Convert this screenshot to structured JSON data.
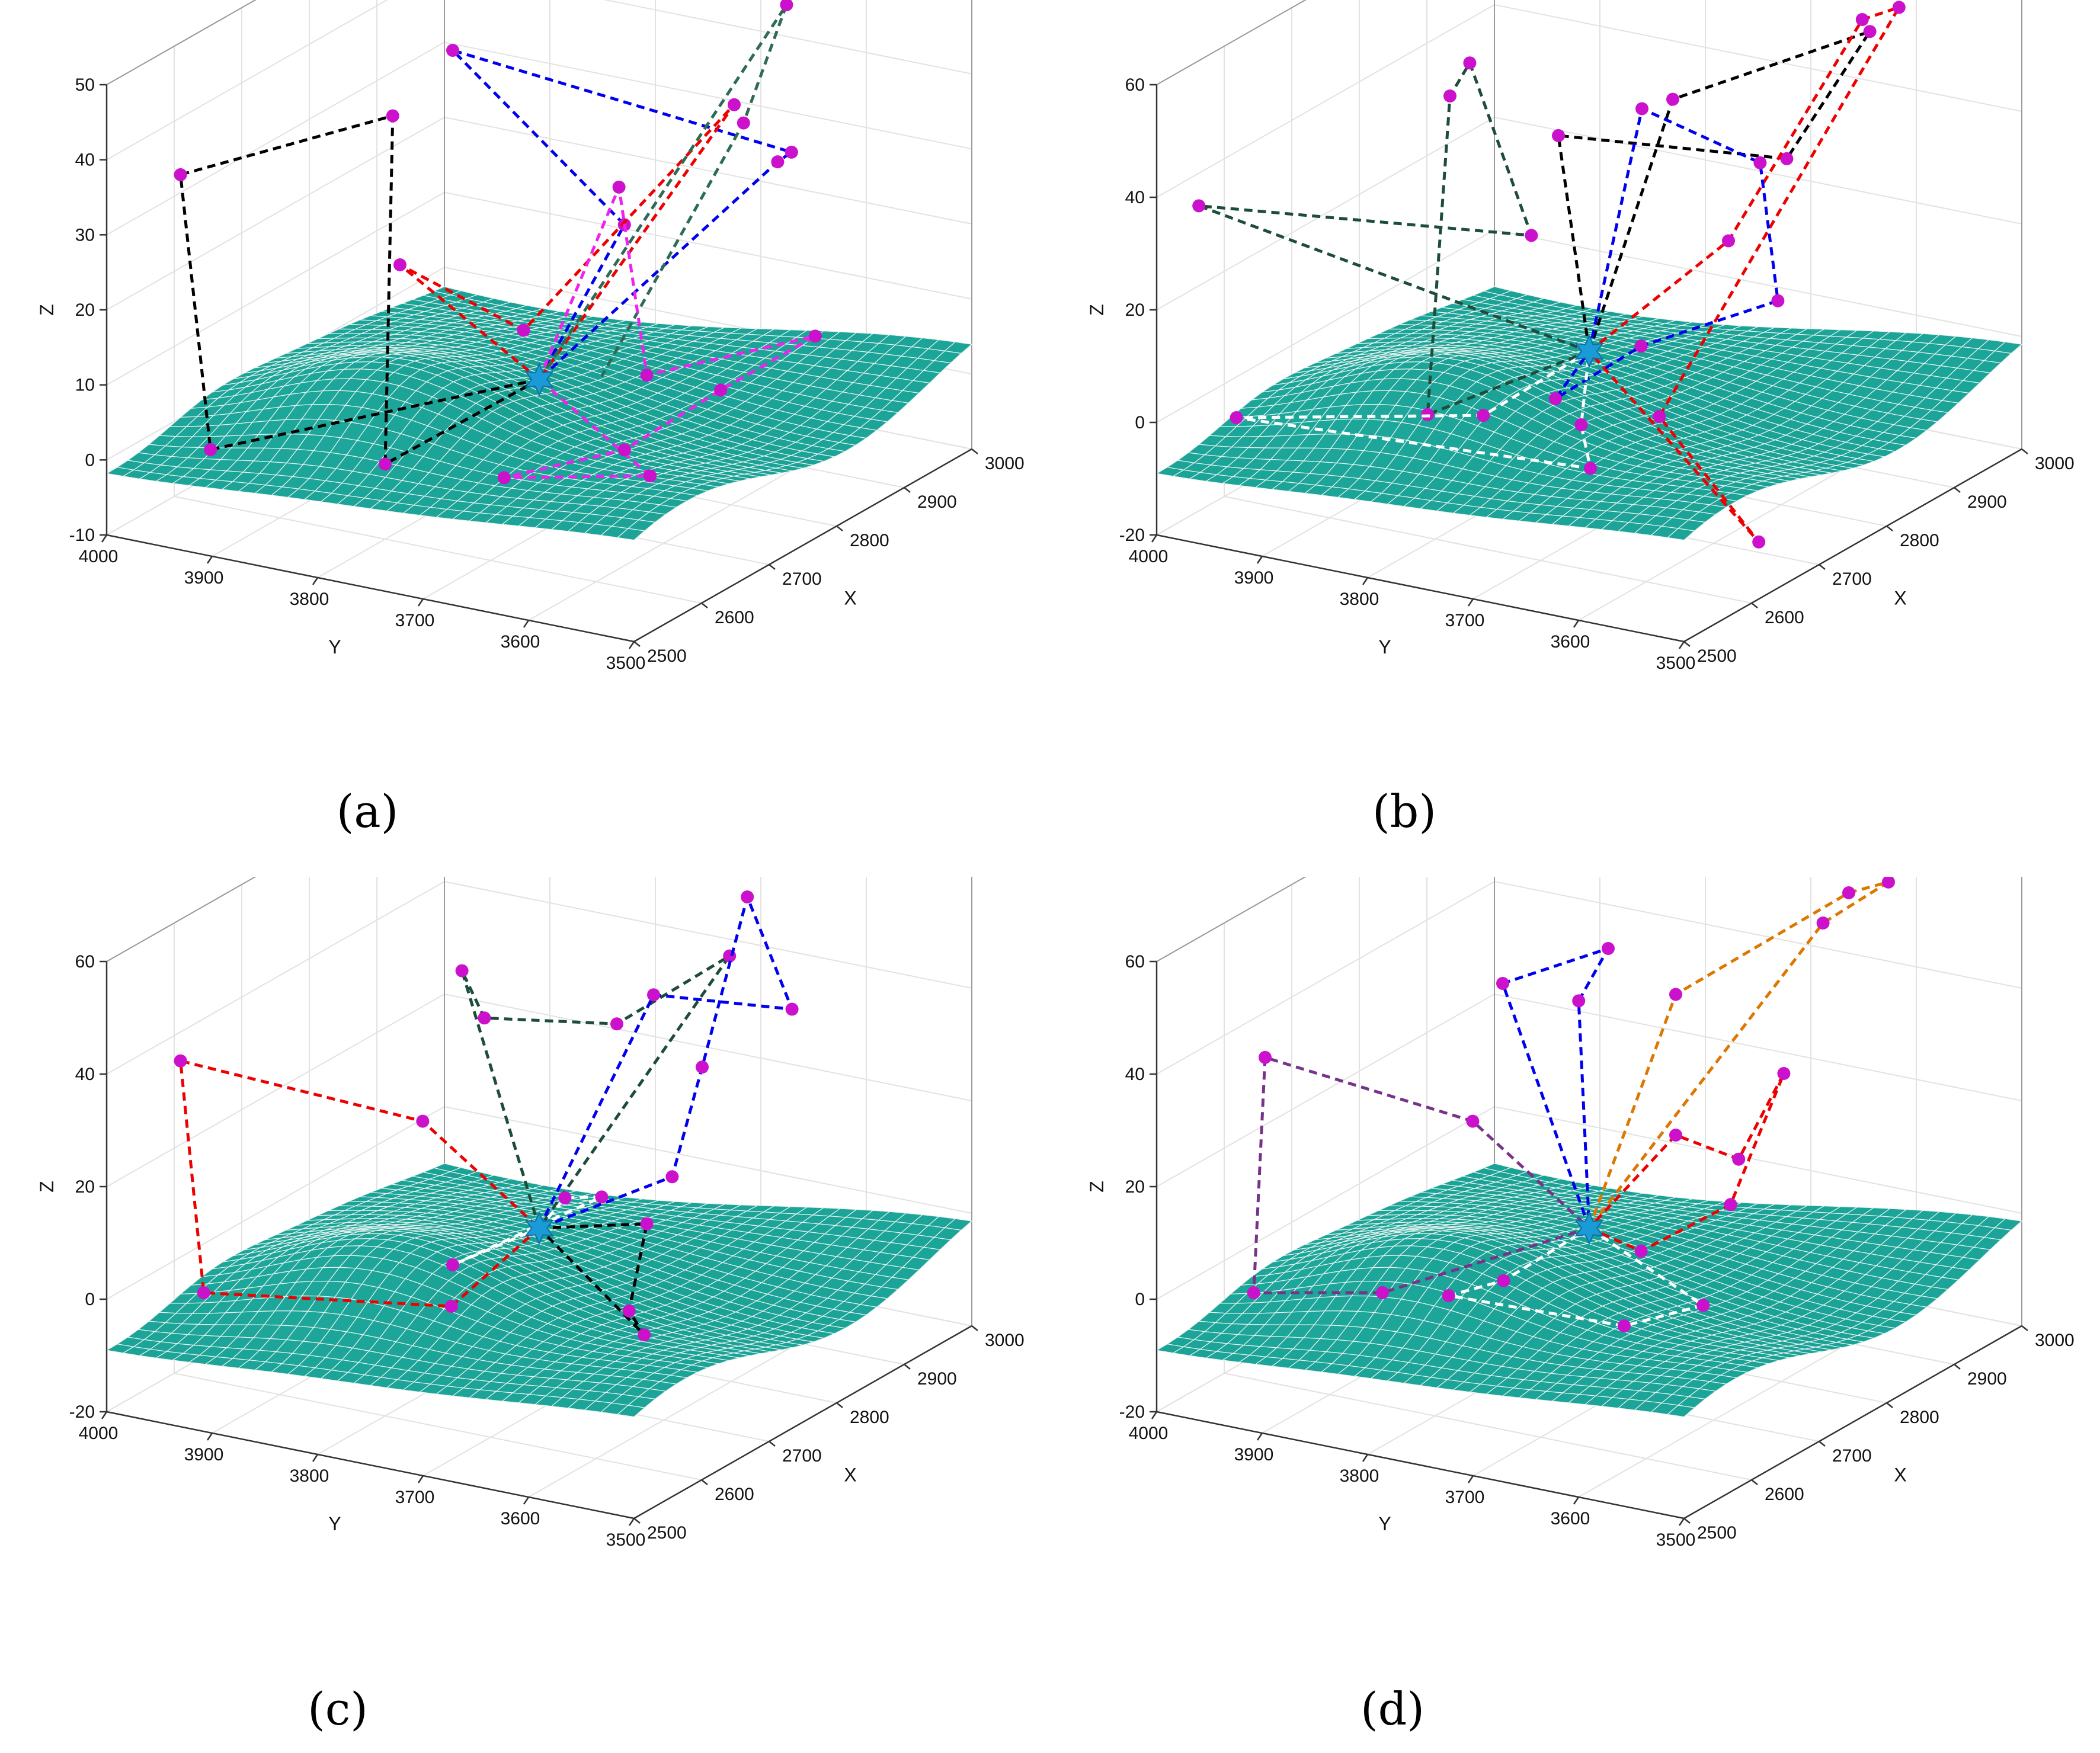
{
  "chart_data": [
    {
      "type": "surface3d",
      "panel": "a",
      "caption": "(a)",
      "xlabel": "X",
      "ylabel": "Y",
      "zlabel": "Z",
      "xlim": [
        2500,
        3000
      ],
      "ylim": [
        3500,
        4000
      ],
      "zlim": [
        -10,
        50
      ],
      "x_ticks": [
        "2500",
        "2600",
        "2700",
        "2800",
        "2900",
        "3000"
      ],
      "y_ticks": [
        "3500",
        "3600",
        "3700",
        "3800",
        "3900",
        "4000"
      ],
      "z_ticks": [
        "-10",
        "0",
        "10",
        "20",
        "30",
        "40",
        "50"
      ],
      "surface_color": "#1aa396",
      "hub": {
        "x": 2750,
        "y": 3750,
        "z": 5
      },
      "routes": [
        {
          "color": "#000000",
          "points": [
            [
              2750,
              3750,
              5
            ],
            [
              2560,
              3940,
              0
            ],
            [
              2500,
              3930,
              40
            ],
            [
              2580,
              3780,
              48
            ],
            [
              2600,
              3800,
              0
            ],
            [
              2750,
              3750,
              5
            ]
          ]
        },
        {
          "color": "#0000ee",
          "points": [
            [
              2750,
              3750,
              5
            ],
            [
              2720,
              3650,
              30
            ],
            [
              2700,
              3800,
              50
            ],
            [
              2780,
              3530,
              40
            ],
            [
              2900,
              3620,
              30
            ],
            [
              2750,
              3750,
              5
            ]
          ]
        },
        {
          "color": "#ee0000",
          "points": [
            [
              2750,
              3750,
              5
            ],
            [
              2700,
              3850,
              20
            ],
            [
              2680,
              3720,
              16
            ],
            [
              2820,
              3610,
              42
            ],
            [
              2750,
              3750,
              5
            ]
          ]
        },
        {
          "color": "#2e6b54",
          "points": [
            [
              2750,
              3750,
              5
            ],
            [
              2960,
              3650,
              47
            ],
            [
              2990,
              3710,
              28
            ],
            [
              2780,
              3710,
              5
            ]
          ]
        },
        {
          "color": "#ee22ee",
          "points": [
            [
              2750,
              3750,
              5
            ],
            [
              2790,
              3700,
              30
            ],
            [
              2800,
              3680,
              5
            ],
            [
              2940,
              3610,
              5
            ],
            [
              2800,
              3610,
              5
            ],
            [
              2720,
              3650,
              0
            ],
            [
              2620,
              3700,
              0
            ],
            [
              2680,
              3600,
              0
            ],
            [
              2750,
              3750,
              5
            ]
          ]
        }
      ]
    },
    {
      "type": "surface3d",
      "panel": "b",
      "caption": "(b)",
      "xlabel": "X",
      "ylabel": "Y",
      "zlabel": "Z",
      "xlim": [
        2500,
        3000
      ],
      "ylim": [
        3500,
        4000
      ],
      "zlim": [
        -20,
        60
      ],
      "x_ticks": [
        "2500",
        "2600",
        "2700",
        "2800",
        "2900",
        "3000"
      ],
      "y_ticks": [
        "3500",
        "3600",
        "3700",
        "3800",
        "3900",
        "4000"
      ],
      "z_ticks": [
        "-20",
        "0",
        "20",
        "40",
        "60"
      ],
      "surface_color": "#1aa396",
      "hub": {
        "x": 2750,
        "y": 3750,
        "z": 5
      },
      "routes": [
        {
          "color": "#1d4d3a",
          "points": [
            [
              2750,
              3750,
              5
            ],
            [
              2620,
              3820,
              0
            ],
            [
              2700,
              3850,
              50
            ],
            [
              2620,
              3780,
              64
            ],
            [
              2680,
              3760,
              30
            ],
            [
              2500,
              3960,
              40
            ],
            [
              2750,
              3750,
              5
            ]
          ]
        },
        {
          "color": "#000000",
          "points": [
            [
              2750,
              3750,
              5
            ],
            [
              2780,
              3690,
              50
            ],
            [
              2900,
              3580,
              58
            ],
            [
              2980,
              3710,
              25
            ],
            [
              2720,
              3760,
              45
            ],
            [
              2750,
              3750,
              5
            ]
          ]
        },
        {
          "color": "#ee0000",
          "points": [
            [
              2750,
              3750,
              5
            ],
            [
              2800,
              3650,
              25
            ],
            [
              2920,
              3600,
              58
            ],
            [
              2990,
              3610,
              55
            ],
            [
              2760,
              3690,
              -5
            ],
            [
              2720,
              3570,
              -20
            ],
            [
              2750,
              3750,
              5
            ]
          ]
        },
        {
          "color": "#0000ee",
          "points": [
            [
              2750,
              3750,
              5
            ],
            [
              2750,
              3700,
              50
            ],
            [
              2800,
              3620,
              40
            ],
            [
              2920,
              3680,
              5
            ],
            [
              2780,
              3720,
              5
            ],
            [
              2700,
              3750,
              0
            ],
            [
              2750,
              3750,
              5
            ]
          ]
        },
        {
          "color": "#ffffff",
          "points": [
            [
              2750,
              3750,
              5
            ],
            [
              2640,
              3780,
              0
            ],
            [
              2540,
              3950,
              0
            ],
            [
              2580,
              3640,
              0
            ],
            [
              2660,
              3700,
              0
            ],
            [
              2750,
              3750,
              5
            ]
          ]
        }
      ]
    },
    {
      "type": "surface3d",
      "panel": "c",
      "caption": "(c)",
      "xlabel": "X",
      "ylabel": "Y",
      "zlabel": "Z",
      "xlim": [
        2500,
        3000
      ],
      "ylim": [
        3500,
        4000
      ],
      "zlim": [
        -20,
        60
      ],
      "x_ticks": [
        "2500",
        "2600",
        "2700",
        "2800",
        "2900",
        "3000"
      ],
      "y_ticks": [
        "3500",
        "3600",
        "3700",
        "3800",
        "3900",
        "4000"
      ],
      "z_ticks": [
        "-20",
        "0",
        "20",
        "40",
        "60"
      ],
      "surface_color": "#1aa396",
      "hub": {
        "x": 2750,
        "y": 3750,
        "z": 5
      },
      "routes": [
        {
          "color": "#ee0000",
          "points": [
            [
              2750,
              3750,
              5
            ],
            [
              2620,
              3750,
              0
            ],
            [
              2550,
              3940,
              0
            ],
            [
              2500,
              3930,
              45
            ],
            [
              2640,
              3790,
              30
            ],
            [
              2750,
              3750,
              5
            ]
          ]
        },
        {
          "color": "#1d4d3a",
          "points": [
            [
              2750,
              3750,
              5
            ],
            [
              2620,
              3740,
              60
            ],
            [
              2700,
              3770,
              45
            ],
            [
              2740,
              3670,
              45
            ],
            [
              2860,
              3640,
              50
            ],
            [
              2750,
              3750,
              5
            ]
          ]
        },
        {
          "color": "#0000ee",
          "points": [
            [
              2750,
              3750,
              5
            ],
            [
              2810,
              3680,
              45
            ],
            [
              2890,
              3600,
              40
            ],
            [
              2980,
              3700,
              50
            ],
            [
              2960,
              3730,
              20
            ],
            [
              2900,
              3720,
              5
            ],
            [
              2750,
              3750,
              5
            ]
          ]
        },
        {
          "color": "#000000",
          "points": [
            [
              2750,
              3750,
              5
            ],
            [
              2800,
              3680,
              5
            ],
            [
              2680,
              3620,
              0
            ],
            [
              2640,
              3580,
              0
            ],
            [
              2750,
              3750,
              5
            ]
          ]
        },
        {
          "color": "#ffffff",
          "points": [
            [
              2750,
              3750,
              5
            ],
            [
              2710,
              3700,
              15
            ],
            [
              2780,
              3710,
              10
            ],
            [
              2700,
              3800,
              0
            ],
            [
              2750,
              3750,
              5
            ]
          ]
        }
      ]
    },
    {
      "type": "surface3d",
      "panel": "d",
      "caption": "(d)",
      "xlabel": "X",
      "ylabel": "Y",
      "zlabel": "Z",
      "xlim": [
        2500,
        3000
      ],
      "ylim": [
        3500,
        4000
      ],
      "zlim": [
        -20,
        60
      ],
      "x_ticks": [
        "2500",
        "2600",
        "2700",
        "2800",
        "2900",
        "3000"
      ],
      "y_ticks": [
        "3500",
        "3600",
        "3700",
        "3800",
        "3900",
        "4000"
      ],
      "z_ticks": [
        "-20",
        "0",
        "20",
        "40",
        "60"
      ],
      "surface_color": "#1aa396",
      "hub": {
        "x": 2750,
        "y": 3750,
        "z": 5
      },
      "routes": [
        {
          "color": "#0000ee",
          "points": [
            [
              2750,
              3750,
              5
            ],
            [
              2700,
              3800,
              50
            ],
            [
              2700,
              3700,
              60
            ],
            [
              2750,
              3760,
              45
            ],
            [
              2750,
              3750,
              5
            ]
          ]
        },
        {
          "color": "#dd7700",
          "points": [
            [
              2750,
              3750,
              5
            ],
            [
              2800,
              3700,
              45
            ],
            [
              2900,
              3600,
              60
            ],
            [
              2990,
              3620,
              55
            ],
            [
              2940,
              3650,
              50
            ],
            [
              2750,
              3750,
              5
            ]
          ]
        },
        {
          "color": "#773388",
          "points": [
            [
              2750,
              3750,
              5
            ],
            [
              2600,
              3850,
              0
            ],
            [
              2550,
              3940,
              0
            ],
            [
              2520,
              3910,
              45
            ],
            [
              2640,
              3790,
              30
            ],
            [
              2750,
              3750,
              5
            ]
          ]
        },
        {
          "color": "#ee0000",
          "points": [
            [
              2750,
              3750,
              5
            ],
            [
              2780,
              3720,
              0
            ],
            [
              2850,
              3680,
              5
            ],
            [
              2960,
              3700,
              20
            ],
            [
              2940,
              3730,
              5
            ],
            [
              2800,
              3700,
              20
            ],
            [
              2750,
              3750,
              5
            ]
          ]
        },
        {
          "color": "#ffffff",
          "points": [
            [
              2750,
              3750,
              5
            ],
            [
              2670,
              3780,
              0
            ],
            [
              2620,
              3800,
              0
            ],
            [
              2630,
              3640,
              0
            ],
            [
              2700,
              3610,
              0
            ],
            [
              2750,
              3750,
              5
            ]
          ]
        }
      ]
    }
  ]
}
